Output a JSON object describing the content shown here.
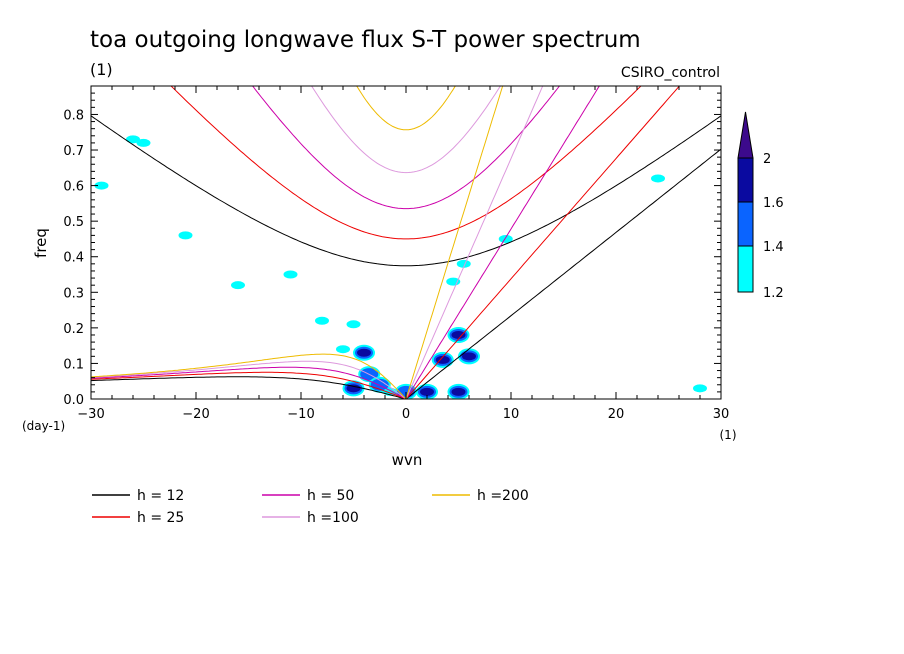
{
  "chart_data": {
    "type": "contour",
    "title": "toa outgoing longwave flux S-T power spectrum",
    "subtitle": "(1)",
    "run_label": "CSIRO_control",
    "xlabel": "wvn",
    "ylabel": "freq",
    "x_unit": "(1)",
    "y_unit": "(day-1)",
    "xlim": [
      -30,
      30
    ],
    "ylim": [
      0,
      0.88
    ],
    "x_ticks": [
      "−30",
      "−20",
      "−10",
      "0",
      "10",
      "20",
      "30"
    ],
    "y_ticks": [
      "0.0",
      "0.1",
      "0.2",
      "0.3",
      "0.4",
      "0.5",
      "0.6",
      "0.7",
      "0.8"
    ],
    "colorbar": {
      "levels": [
        "1.2",
        "1.4",
        "1.6",
        "2"
      ],
      "colors": [
        "#00ffff",
        "#0a64ff",
        "#0a0aa0",
        "#3c0a8c"
      ]
    },
    "dispersion_curves": [
      {
        "label": "h = 12",
        "h": 12,
        "color": "#000000"
      },
      {
        "label": "h = 25",
        "h": 25,
        "color": "#ee0000"
      },
      {
        "label": "h = 50",
        "h": 50,
        "color": "#cc00aa"
      },
      {
        "label": "h =100",
        "h": 100,
        "color": "#dd99dd"
      },
      {
        "label": "h =200",
        "h": 200,
        "color": "#eebb00"
      }
    ],
    "blobs_data": [
      {
        "k": -5.0,
        "f": 0.03,
        "level": 3
      },
      {
        "k": -4.0,
        "f": 0.13,
        "level": 3
      },
      {
        "k": -3.5,
        "f": 0.07,
        "level": 2
      },
      {
        "k": -2.5,
        "f": 0.04,
        "level": 2
      },
      {
        "k": -1.5,
        "f": 0.02,
        "level": 1
      },
      {
        "k": 0.0,
        "f": 0.02,
        "level": 2
      },
      {
        "k": 2.0,
        "f": 0.02,
        "level": 3
      },
      {
        "k": 3.5,
        "f": 0.11,
        "level": 3
      },
      {
        "k": 5.0,
        "f": 0.18,
        "level": 3
      },
      {
        "k": 6.0,
        "f": 0.12,
        "level": 3
      },
      {
        "k": 5.0,
        "f": 0.02,
        "level": 3
      },
      {
        "k": 4.5,
        "f": 0.33,
        "level": 1
      },
      {
        "k": 5.5,
        "f": 0.38,
        "level": 1
      },
      {
        "k": 9.5,
        "f": 0.45,
        "level": 1
      },
      {
        "k": -5.0,
        "f": 0.21,
        "level": 1
      },
      {
        "k": -8.0,
        "f": 0.22,
        "level": 1
      },
      {
        "k": -21.0,
        "f": 0.46,
        "level": 1
      },
      {
        "k": -29.0,
        "f": 0.6,
        "level": 1
      },
      {
        "k": -26.0,
        "f": 0.73,
        "level": 1
      },
      {
        "k": -25.0,
        "f": 0.72,
        "level": 1
      },
      {
        "k": -6.0,
        "f": 0.14,
        "level": 1
      },
      {
        "k": 28.0,
        "f": 0.03,
        "level": 1
      },
      {
        "k": 24.0,
        "f": 0.62,
        "level": 1
      },
      {
        "k": -11.0,
        "f": 0.35,
        "level": 1
      },
      {
        "k": -16.0,
        "f": 0.32,
        "level": 1
      }
    ]
  }
}
